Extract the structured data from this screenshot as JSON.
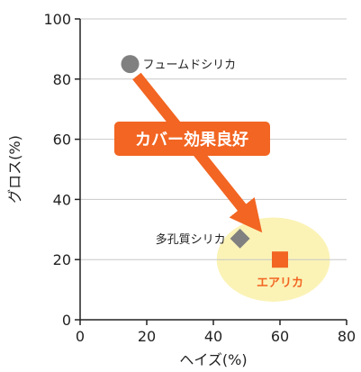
{
  "colors": {
    "accent": "#f26522",
    "highlight": "#fbf3b6",
    "fumed_marker": "#808080",
    "porous_marker": "#808080",
    "grid": "#c8c8c8",
    "axis": "#222222"
  },
  "chart_data": {
    "type": "scatter",
    "xlabel": "ヘイズ(%)",
    "ylabel": "グロス(%)",
    "xlim": [
      0,
      80
    ],
    "ylim": [
      0,
      100
    ],
    "x_ticks": [
      "0",
      "20",
      "40",
      "60",
      "80"
    ],
    "y_ticks": [
      "0",
      "20",
      "40",
      "60",
      "80",
      "100"
    ],
    "grid": "horizontal",
    "points": [
      {
        "name": "フュームドシリカ",
        "x": 15,
        "y": 85,
        "marker": "circle"
      },
      {
        "name": "多孔質シリカ",
        "x": 48,
        "y": 27,
        "marker": "diamond"
      },
      {
        "name": "エアリカ",
        "x": 60,
        "y": 20,
        "marker": "square"
      }
    ],
    "annotation": {
      "text": "カバー効果良好",
      "arrow_from": {
        "x": 17,
        "y": 81
      },
      "arrow_to": {
        "x": 51,
        "y": 34
      }
    },
    "highlight_region": {
      "center": {
        "x": 58,
        "y": 20
      },
      "rx": 17,
      "ry": 14
    }
  }
}
